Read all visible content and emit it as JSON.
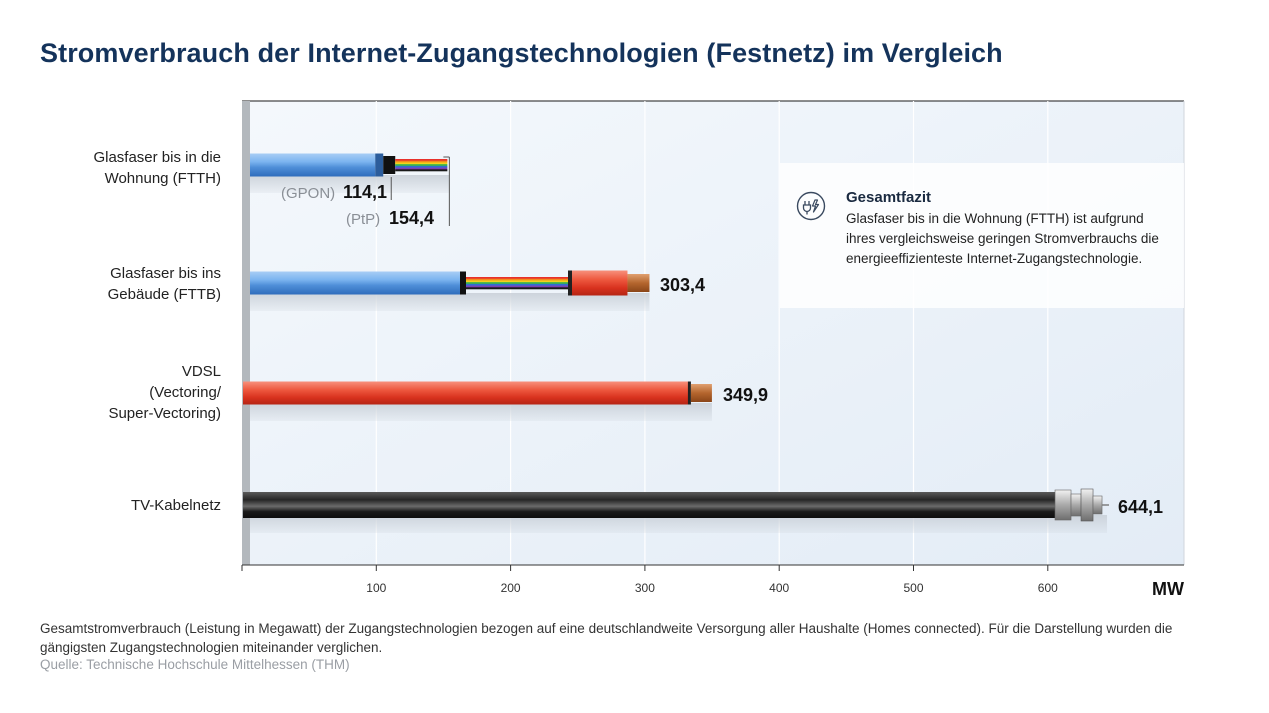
{
  "title": "Stromverbrauch der Internet-Zugangstechnologien (Festnetz) im Vergleich",
  "chart_data": {
    "type": "bar",
    "orientation": "horizontal",
    "categories": [
      [
        "Glasfaser bis in die",
        "Wohnung (FTTH)"
      ],
      [
        "Glasfaser bis ins",
        "Gebäude (FTTB)"
      ],
      [
        "VDSL",
        "(Vectoring/",
        "Super-Vectoring)"
      ],
      [
        "TV-Kabelnetz"
      ]
    ],
    "values": [
      114.1,
      303.4,
      349.9,
      644.1
    ],
    "value_labels": [
      "114,1",
      "303,4",
      "349,9",
      "644,1"
    ],
    "ftth_variants": [
      {
        "name": "(GPON)",
        "value": 114.1,
        "label": "114,1"
      },
      {
        "name": "(PtP)",
        "value": 154.4,
        "label": "154,4"
      }
    ],
    "x_ticks": [
      100,
      200,
      300,
      400,
      500,
      600
    ],
    "x_tick_labels": [
      "100",
      "200",
      "300",
      "400",
      "500",
      "600"
    ],
    "xlim": [
      0,
      700
    ],
    "xlabel": "MW",
    "grid": true,
    "colors": {
      "fiber_blue": "#6aa6e8",
      "copper_red": "#e4432f",
      "coax_black": "#1c1c1c",
      "background": "#eaf1f8",
      "title": "#14335b"
    }
  },
  "callout": {
    "icon": "power-plug-icon",
    "title": "Gesamtfazit",
    "text": "Glasfaser bis in die Wohnung (FTTH) ist aufgrund ihres vergleichsweise geringen Stromverbrauchs die energieeffizienteste Internet-Zugangstechnologie."
  },
  "footnote": "Gesamtstromverbrauch (Leistung in Megawatt) der Zugangstechnologien bezogen auf eine deutschlandweite Versorgung aller Haushalte (Homes connected). Für die Darstellung wurden die gängigsten Zugangstechnologien miteinander verglichen.",
  "source": "Quelle: Technische Hochschule Mittelhessen (THM)"
}
